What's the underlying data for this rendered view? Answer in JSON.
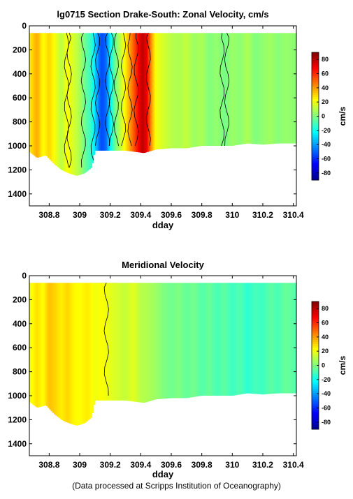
{
  "footer": "(Data processed at Scripps Institution of Oceanography)",
  "colormap": [
    "#00008f",
    "#0000ff",
    "#0080ff",
    "#00ffff",
    "#80ff80",
    "#ffff00",
    "#ff8000",
    "#ff0000",
    "#800000"
  ],
  "chart_data": [
    {
      "type": "heatmap",
      "title": "lg0715 Section Drake-South: Zonal Velocity, cm/s",
      "xlabel": "dday",
      "ylabel": "",
      "xlim": [
        308.67,
        310.42
      ],
      "ylim": [
        1500,
        0
      ],
      "xticks": [
        "308.8",
        "309",
        "309.2",
        "309.4",
        "309.6",
        "309.8",
        "310",
        "310.2",
        "310.4"
      ],
      "yticks": [
        "0",
        "200",
        "400",
        "600",
        "800",
        "1000",
        "1200",
        "1400"
      ],
      "colorbar": {
        "label": "cm/s",
        "clim": [
          -90,
          90
        ],
        "ticks": [
          "80",
          "60",
          "40",
          "20",
          "0",
          "-20",
          "-40",
          "-60",
          "-80"
        ]
      },
      "depth_max_profile": [
        [
          308.67,
          1050
        ],
        [
          308.72,
          1100
        ],
        [
          308.78,
          1080
        ],
        [
          308.83,
          1150
        ],
        [
          308.88,
          1200
        ],
        [
          308.93,
          1230
        ],
        [
          308.98,
          1250
        ],
        [
          309.03,
          1230
        ],
        [
          309.08,
          1180
        ],
        [
          309.1,
          1040
        ],
        [
          309.2,
          1040
        ],
        [
          309.3,
          1040
        ],
        [
          309.42,
          1060
        ],
        [
          309.5,
          1030
        ],
        [
          309.6,
          1020
        ],
        [
          309.7,
          1020
        ],
        [
          309.8,
          1000
        ],
        [
          309.9,
          1000
        ],
        [
          310.0,
          1000
        ],
        [
          310.1,
          980
        ],
        [
          310.2,
          990
        ],
        [
          310.3,
          980
        ],
        [
          310.42,
          980
        ]
      ],
      "velocity_profile": [
        [
          308.67,
          25
        ],
        [
          308.72,
          38
        ],
        [
          308.76,
          22
        ],
        [
          308.8,
          30
        ],
        [
          308.84,
          20
        ],
        [
          308.88,
          10
        ],
        [
          308.92,
          22
        ],
        [
          308.96,
          15
        ],
        [
          309.0,
          8
        ],
        [
          309.04,
          -5
        ],
        [
          309.08,
          -15
        ],
        [
          309.11,
          -35
        ],
        [
          309.14,
          -55
        ],
        [
          309.17,
          -50
        ],
        [
          309.2,
          -25
        ],
        [
          309.23,
          -5
        ],
        [
          309.26,
          10
        ],
        [
          309.3,
          25
        ],
        [
          309.34,
          45
        ],
        [
          309.38,
          65
        ],
        [
          309.41,
          80
        ],
        [
          309.44,
          70
        ],
        [
          309.47,
          40
        ],
        [
          309.5,
          20
        ],
        [
          309.55,
          15
        ],
        [
          309.6,
          10
        ],
        [
          309.65,
          8
        ],
        [
          309.7,
          12
        ],
        [
          309.75,
          5
        ],
        [
          309.8,
          8
        ],
        [
          309.85,
          0
        ],
        [
          309.9,
          4
        ],
        [
          309.95,
          -2
        ],
        [
          310.0,
          5
        ],
        [
          310.05,
          2
        ],
        [
          310.1,
          8
        ],
        [
          310.15,
          0
        ],
        [
          310.2,
          3
        ],
        [
          310.25,
          6
        ],
        [
          310.3,
          1
        ],
        [
          310.35,
          4
        ],
        [
          310.42,
          2
        ]
      ]
    },
    {
      "type": "heatmap",
      "title": "Meridional Velocity",
      "xlabel": "dday",
      "ylabel": "",
      "xlim": [
        308.67,
        310.42
      ],
      "ylim": [
        1500,
        0
      ],
      "xticks": [
        "308.8",
        "309",
        "309.2",
        "309.4",
        "309.6",
        "309.8",
        "310",
        "310.2",
        "310.4"
      ],
      "yticks": [
        "0",
        "200",
        "400",
        "600",
        "800",
        "1000",
        "1200",
        "1400"
      ],
      "colorbar": {
        "label": "cm/s",
        "clim": [
          -90,
          90
        ],
        "ticks": [
          "80",
          "60",
          "40",
          "20",
          "0",
          "-20",
          "-40",
          "-60",
          "-80"
        ]
      },
      "depth_max_profile": [
        [
          308.67,
          1050
        ],
        [
          308.72,
          1100
        ],
        [
          308.78,
          1080
        ],
        [
          308.83,
          1150
        ],
        [
          308.88,
          1200
        ],
        [
          308.93,
          1230
        ],
        [
          308.98,
          1250
        ],
        [
          309.03,
          1230
        ],
        [
          309.08,
          1180
        ],
        [
          309.1,
          1040
        ],
        [
          309.2,
          1040
        ],
        [
          309.3,
          1040
        ],
        [
          309.42,
          1060
        ],
        [
          309.5,
          1030
        ],
        [
          309.6,
          1020
        ],
        [
          309.7,
          1020
        ],
        [
          309.8,
          1000
        ],
        [
          309.9,
          1000
        ],
        [
          310.0,
          1000
        ],
        [
          310.1,
          980
        ],
        [
          310.2,
          990
        ],
        [
          310.3,
          980
        ],
        [
          310.42,
          980
        ]
      ],
      "velocity_profile": [
        [
          308.67,
          20
        ],
        [
          308.72,
          28
        ],
        [
          308.76,
          22
        ],
        [
          308.8,
          34
        ],
        [
          308.84,
          30
        ],
        [
          308.88,
          25
        ],
        [
          308.92,
          30
        ],
        [
          308.96,
          24
        ],
        [
          309.0,
          22
        ],
        [
          309.05,
          26
        ],
        [
          309.1,
          20
        ],
        [
          309.15,
          22
        ],
        [
          309.2,
          18
        ],
        [
          309.25,
          15
        ],
        [
          309.3,
          12
        ],
        [
          309.35,
          18
        ],
        [
          309.4,
          10
        ],
        [
          309.45,
          8
        ],
        [
          309.5,
          5
        ],
        [
          309.55,
          0
        ],
        [
          309.6,
          -3
        ],
        [
          309.65,
          0
        ],
        [
          309.7,
          -5
        ],
        [
          309.75,
          -2
        ],
        [
          309.8,
          -8
        ],
        [
          309.85,
          -4
        ],
        [
          309.9,
          -10
        ],
        [
          309.95,
          -6
        ],
        [
          310.0,
          -12
        ],
        [
          310.05,
          -8
        ],
        [
          310.1,
          -15
        ],
        [
          310.15,
          -10
        ],
        [
          310.2,
          -12
        ],
        [
          310.25,
          -6
        ],
        [
          310.3,
          -10
        ],
        [
          310.35,
          -4
        ],
        [
          310.42,
          -8
        ]
      ]
    }
  ]
}
